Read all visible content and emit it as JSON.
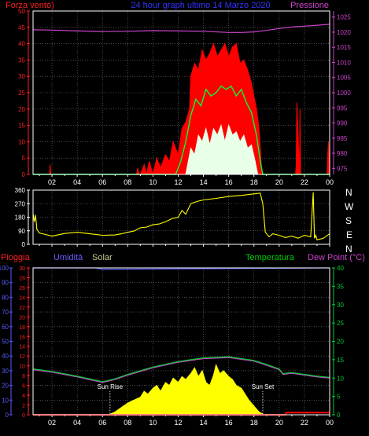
{
  "colors": {
    "background": "#000000",
    "axis": "#ffffff",
    "grid": "#7a7a7a",
    "wind_gust": "#ff0000",
    "wind_avg": "#00ff33",
    "wind_min": "#e8ffe8",
    "pressure": "#cc44cc",
    "direction": "#ffff00",
    "rain": "#ff0000",
    "humidity": "#5a5aff",
    "solar": "#ffff00",
    "temperature": "#00cc33",
    "dewpoint": "#cc44cc",
    "title": "#3333ff",
    "humidity_label": "#6a5aff",
    "solar_label": "#c8c896",
    "temperature_label": "#00cc00",
    "sun_marker": "#ffffff"
  },
  "header": {
    "left_label": "Forza vento)",
    "title": "24 hour graph ultimo 14 Marzo 2020",
    "right_label": "Pressione"
  },
  "compass": [
    "N",
    "W",
    "S",
    "E",
    "N"
  ],
  "bottom_labels": {
    "rain": "Pioggia",
    "humidity": "Umidità",
    "solar": "Solar",
    "temperature": "Temperatura",
    "dewpoint": "Dew Point (°C)",
    "sunrise": "Sun Rise",
    "sunset": "Sun Set"
  },
  "time_ticks": [
    "02",
    "04",
    "06",
    "08",
    "10",
    "12",
    "14",
    "16",
    "18",
    "20",
    "22",
    "00"
  ],
  "chart_data": [
    {
      "type": "area",
      "id": "wind",
      "x_unit": "hour",
      "xlim": [
        0.5,
        24
      ],
      "ylim": [
        0,
        50
      ],
      "yticks": [
        0,
        5,
        10,
        15,
        20,
        25,
        30,
        35,
        40,
        45,
        50
      ],
      "y2lim": [
        973,
        1027
      ],
      "y2ticks": [
        975,
        980,
        985,
        990,
        995,
        1000,
        1005,
        1010,
        1015,
        1020,
        1025
      ],
      "series": [
        {
          "key": "wind_gust",
          "x": [
            0.5,
            1.8,
            1.85,
            1.9,
            2.0,
            8.7,
            8.8,
            8.9,
            9.0,
            9.3,
            9.5,
            9.7,
            10.0,
            10.3,
            10.6,
            11.0,
            11.3,
            11.6,
            12.0,
            12.3,
            12.6,
            12.9,
            13.0,
            13.3,
            13.6,
            13.9,
            14.2,
            14.5,
            14.8,
            15.1,
            15.4,
            15.7,
            16.0,
            16.3,
            16.6,
            16.9,
            17.2,
            17.5,
            17.8,
            18.0,
            18.2,
            18.4,
            18.5,
            18.6,
            18.7,
            18.8,
            21.3,
            21.35,
            21.4,
            21.5,
            21.6,
            21.65,
            21.7,
            21.8,
            23.8,
            23.85,
            23.9,
            24.0
          ],
          "values": [
            0,
            0,
            3,
            0,
            0,
            0,
            2,
            0,
            0,
            3,
            0,
            4,
            0,
            5,
            2,
            6,
            4,
            10,
            6,
            14,
            16,
            20,
            30,
            34,
            32,
            38,
            35,
            37,
            40,
            36,
            38,
            40,
            36,
            39,
            40,
            34,
            35,
            32,
            28,
            24,
            20,
            14,
            8,
            2,
            0,
            0,
            0,
            3,
            22,
            12,
            0,
            20,
            0,
            0,
            0,
            6,
            10,
            0
          ]
        },
        {
          "key": "wind_avg",
          "x": [
            0.5,
            11.8,
            12.2,
            12.6,
            13.0,
            13.4,
            13.8,
            14.2,
            14.6,
            15.0,
            15.4,
            15.8,
            16.2,
            16.6,
            17.0,
            17.4,
            17.8,
            18.2,
            18.5,
            18.7,
            24.0
          ],
          "values": [
            0,
            0,
            4,
            10,
            18,
            23,
            21,
            26,
            24,
            25,
            27,
            26,
            27,
            24,
            26,
            22,
            19,
            12,
            4,
            0,
            0
          ]
        },
        {
          "key": "wind_min",
          "x": [
            0.5,
            12.6,
            12.8,
            13.0,
            13.3,
            13.6,
            13.9,
            14.2,
            14.5,
            14.8,
            15.1,
            15.4,
            15.7,
            16.0,
            16.3,
            16.6,
            16.9,
            17.2,
            17.5,
            17.8,
            18.1,
            18.3,
            24.0
          ],
          "values": [
            0,
            0,
            4,
            8,
            6,
            12,
            10,
            14,
            9,
            14,
            12,
            15,
            10,
            15,
            12,
            13,
            10,
            12,
            8,
            9,
            4,
            0,
            0
          ]
        },
        {
          "key": "pressure",
          "axis": "right",
          "x": [
            0.5,
            2,
            4,
            6,
            8,
            10,
            12,
            14,
            16,
            17,
            18,
            19,
            20,
            21,
            22,
            23,
            24
          ],
          "values": [
            1020.8,
            1020.7,
            1020.4,
            1020.2,
            1020.3,
            1020.5,
            1020.4,
            1020.3,
            1019.9,
            1019.9,
            1020.1,
            1020.6,
            1021.2,
            1021.7,
            1022.0,
            1022.3,
            1022.6
          ]
        }
      ]
    },
    {
      "type": "line",
      "id": "direction",
      "x_unit": "hour",
      "xlim": [
        0.5,
        24
      ],
      "ylim": [
        0,
        360
      ],
      "yticks": [
        0,
        90,
        180,
        270,
        360
      ],
      "series": [
        {
          "key": "direction",
          "x": [
            0.5,
            0.6,
            0.7,
            0.8,
            1.0,
            1.5,
            2.0,
            3.0,
            4.0,
            5.0,
            6.0,
            7.0,
            7.5,
            8.0,
            8.5,
            9.0,
            9.5,
            10.0,
            10.5,
            11.0,
            11.5,
            12.0,
            12.3,
            12.6,
            13.0,
            13.5,
            14.0,
            15.0,
            16.0,
            17.0,
            18.0,
            18.5,
            18.7,
            18.9,
            19.2,
            19.5,
            20.0,
            20.5,
            21.0,
            21.5,
            22.0,
            22.5,
            22.7,
            22.8,
            22.9,
            23.0,
            23.5,
            24.0
          ],
          "values": [
            205,
            150,
            195,
            100,
            75,
            65,
            55,
            72,
            80,
            70,
            60,
            62,
            70,
            80,
            88,
            110,
            115,
            130,
            135,
            150,
            170,
            180,
            225,
            200,
            270,
            285,
            295,
            305,
            318,
            325,
            335,
            340,
            270,
            80,
            50,
            70,
            60,
            45,
            55,
            40,
            60,
            50,
            345,
            40,
            60,
            30,
            40,
            70
          ]
        }
      ]
    },
    {
      "type": "area",
      "id": "climate",
      "x_unit": "hour",
      "xlim": [
        0.5,
        24
      ],
      "ylim": [
        0,
        100
      ],
      "yticks": [
        0,
        10,
        20,
        30,
        40,
        50,
        60,
        70,
        80,
        90,
        100
      ],
      "y2lim": [
        0,
        40
      ],
      "y2ticks": [
        0,
        5,
        10,
        15,
        20,
        25,
        30,
        35,
        40
      ],
      "series": [
        {
          "key": "rain",
          "x": [
            0.5,
            20.5,
            20.55,
            24.0
          ],
          "values": [
            0,
            0,
            1.5,
            1.5
          ]
        },
        {
          "key": "humidity",
          "x": [
            0.5,
            5.5,
            6.0,
            24.0
          ],
          "values": [
            100,
            100,
            99,
            100
          ]
        },
        {
          "key": "solar",
          "x": [
            6.5,
            7.0,
            7.5,
            8.0,
            8.5,
            9.0,
            9.3,
            9.6,
            10.0,
            10.3,
            10.6,
            11.0,
            11.3,
            11.6,
            12.0,
            12.3,
            12.6,
            13.0,
            13.3,
            13.6,
            13.9,
            14.2,
            14.5,
            14.8,
            15.0,
            15.3,
            15.6,
            16.0,
            16.3,
            16.6,
            17.0,
            17.3,
            17.6,
            18.0,
            18.4,
            18.8
          ],
          "values": [
            0,
            2,
            5,
            8,
            10,
            12,
            16,
            14,
            18,
            20,
            16,
            22,
            20,
            25,
            22,
            26,
            24,
            28,
            32,
            26,
            30,
            22,
            20,
            27,
            34,
            28,
            30,
            26,
            24,
            20,
            18,
            14,
            10,
            6,
            2,
            0
          ]
        },
        {
          "key": "temperature",
          "axis": "right",
          "x": [
            0.5,
            2,
            4,
            6,
            7,
            8,
            10,
            12,
            14,
            16,
            18,
            19,
            20,
            20.3,
            21,
            22,
            23,
            24
          ],
          "values": [
            12.5,
            11.8,
            10.5,
            9.0,
            9.8,
            11.0,
            13.0,
            14.5,
            15.5,
            15.8,
            14.8,
            13.7,
            12.5,
            11.2,
            11.5,
            11.0,
            10.5,
            10.2
          ]
        },
        {
          "key": "dewpoint",
          "axis": "right",
          "x": [
            0.5,
            2,
            4,
            6,
            7,
            8,
            10,
            12,
            14,
            16,
            18,
            19,
            20,
            20.3,
            21,
            22,
            23,
            24
          ],
          "values": [
            12.3,
            11.6,
            10.3,
            8.8,
            9.6,
            10.8,
            12.8,
            14.3,
            15.3,
            15.6,
            14.6,
            13.5,
            12.3,
            11.0,
            11.3,
            10.8,
            10.3,
            10.0
          ]
        }
      ],
      "markers": [
        {
          "key": "sunrise",
          "x": 6.6
        },
        {
          "key": "sunset",
          "x": 18.7
        }
      ]
    }
  ]
}
